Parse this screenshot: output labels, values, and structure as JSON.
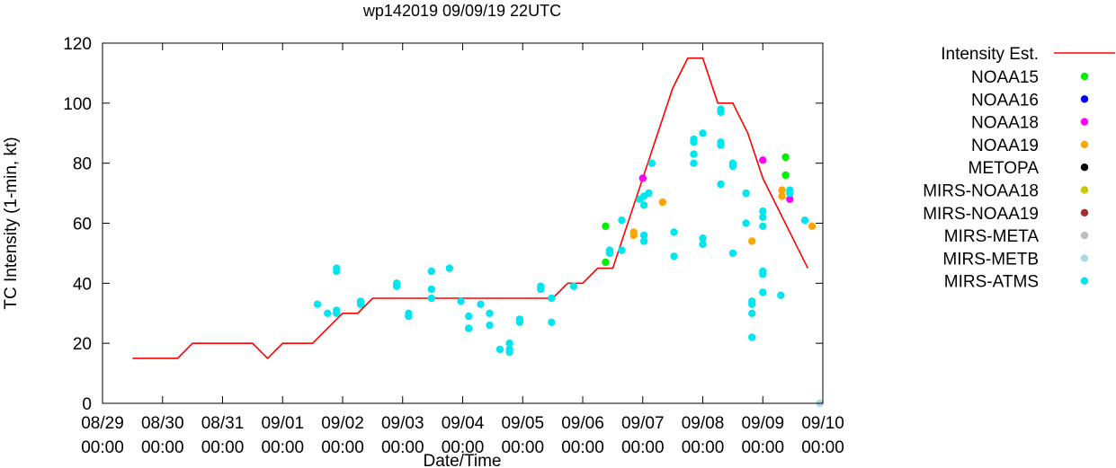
{
  "chart_data": {
    "type": "scatter",
    "title": "wp142019 09/09/19 22UTC",
    "xlabel": "Date/Time",
    "ylabel": "TC Intensity (1-min, kt)",
    "ylim": [
      0,
      120
    ],
    "yticks": [
      0,
      20,
      40,
      60,
      80,
      100,
      120
    ],
    "xlim": [
      0,
      12
    ],
    "xtick_dates": [
      "08/29",
      "08/30",
      "08/31",
      "09/01",
      "09/02",
      "09/03",
      "09/04",
      "09/05",
      "09/06",
      "09/07",
      "09/08",
      "09/09",
      "09/10"
    ],
    "xtick_times": [
      "00:00",
      "00:00",
      "00:00",
      "00:00",
      "00:00",
      "00:00",
      "00:00",
      "00:00",
      "00:00",
      "00:00",
      "00:00",
      "00:00",
      "00:00"
    ],
    "x_units": "days since 08/29 00:00",
    "intensity": {
      "name": "Intensity Est.",
      "color": "#ff0000",
      "x": [
        0.5,
        1.25,
        1.5,
        2.25,
        2.5,
        2.75,
        3.0,
        3.5,
        4.0,
        4.25,
        4.5,
        5.0,
        5.5,
        6.0,
        6.5,
        7.0,
        7.5,
        7.75,
        8.0,
        8.25,
        8.5,
        8.75,
        9.0,
        9.5,
        9.75,
        10.0,
        10.25,
        10.5,
        10.75,
        11.0,
        11.5,
        11.75
      ],
      "y": [
        15,
        15,
        20,
        20,
        20,
        15,
        20,
        20,
        30,
        30,
        35,
        35,
        35,
        35,
        35,
        35,
        35,
        40,
        40,
        45,
        45,
        60,
        75,
        105,
        115,
        115,
        100,
        100,
        90,
        75,
        55,
        45
      ]
    },
    "series": [
      {
        "name": "NOAA15",
        "color": "#00ee00",
        "points": [
          [
            8.38,
            59
          ],
          [
            8.38,
            47
          ],
          [
            11.38,
            82
          ],
          [
            11.38,
            76
          ]
        ]
      },
      {
        "name": "NOAA16",
        "color": "#0000ff",
        "points": []
      },
      {
        "name": "NOAA18",
        "color": "#ff00ff",
        "points": [
          [
            9.0,
            75
          ],
          [
            11.0,
            81
          ],
          [
            11.45,
            68
          ]
        ]
      },
      {
        "name": "NOAA19",
        "color": "#ffa500",
        "points": [
          [
            8.85,
            57
          ],
          [
            8.85,
            56
          ],
          [
            9.33,
            67
          ],
          [
            10.82,
            54
          ],
          [
            11.32,
            71
          ],
          [
            11.32,
            69
          ],
          [
            11.82,
            59
          ]
        ]
      },
      {
        "name": "METOPA",
        "color": "#000000",
        "points": []
      },
      {
        "name": "MIRS-NOAA18",
        "color": "#c8c800",
        "points": []
      },
      {
        "name": "MIRS-NOAA19",
        "color": "#a52a2a",
        "points": []
      },
      {
        "name": "MIRS-META",
        "color": "#bebebe",
        "points": []
      },
      {
        "name": "MIRS-METB",
        "color": "#add8e6",
        "points": [
          [
            11.95,
            0
          ]
        ]
      },
      {
        "name": "MIRS-ATMS",
        "color": "#00e5ee",
        "points": [
          [
            3.58,
            33
          ],
          [
            3.75,
            30
          ],
          [
            3.9,
            45
          ],
          [
            3.9,
            44
          ],
          [
            3.9,
            31
          ],
          [
            3.9,
            30
          ],
          [
            4.3,
            34
          ],
          [
            4.3,
            33
          ],
          [
            4.9,
            40
          ],
          [
            4.9,
            39
          ],
          [
            5.1,
            30
          ],
          [
            5.1,
            29
          ],
          [
            5.48,
            44
          ],
          [
            5.48,
            38
          ],
          [
            5.48,
            35
          ],
          [
            5.78,
            45
          ],
          [
            5.97,
            34
          ],
          [
            6.1,
            29
          ],
          [
            6.1,
            25
          ],
          [
            6.3,
            33
          ],
          [
            6.45,
            30
          ],
          [
            6.45,
            26
          ],
          [
            6.62,
            18
          ],
          [
            6.78,
            20
          ],
          [
            6.78,
            18
          ],
          [
            6.78,
            17
          ],
          [
            6.95,
            28
          ],
          [
            6.95,
            27
          ],
          [
            7.3,
            39
          ],
          [
            7.3,
            38
          ],
          [
            7.48,
            35
          ],
          [
            7.48,
            27
          ],
          [
            7.85,
            39
          ],
          [
            8.45,
            51
          ],
          [
            8.45,
            50
          ],
          [
            8.65,
            61
          ],
          [
            8.65,
            51
          ],
          [
            8.95,
            68
          ],
          [
            9.1,
            70
          ],
          [
            9.02,
            69
          ],
          [
            9.02,
            66
          ],
          [
            9.02,
            56
          ],
          [
            9.02,
            54
          ],
          [
            9.15,
            80
          ],
          [
            9.52,
            57
          ],
          [
            9.52,
            49
          ],
          [
            9.85,
            88
          ],
          [
            9.85,
            87
          ],
          [
            9.85,
            83
          ],
          [
            9.85,
            80
          ],
          [
            10.0,
            90
          ],
          [
            10.0,
            55
          ],
          [
            10.0,
            53
          ],
          [
            10.3,
            98
          ],
          [
            10.3,
            97
          ],
          [
            10.3,
            87
          ],
          [
            10.3,
            86
          ],
          [
            10.3,
            73
          ],
          [
            10.5,
            80
          ],
          [
            10.5,
            79
          ],
          [
            10.5,
            50
          ],
          [
            10.72,
            70
          ],
          [
            10.72,
            60
          ],
          [
            10.82,
            34
          ],
          [
            10.82,
            33
          ],
          [
            10.82,
            30
          ],
          [
            10.82,
            22
          ],
          [
            11.0,
            64
          ],
          [
            11.0,
            62
          ],
          [
            11.0,
            59
          ],
          [
            11.0,
            44
          ],
          [
            11.0,
            43
          ],
          [
            11.0,
            37
          ],
          [
            11.3,
            36
          ],
          [
            11.45,
            71
          ],
          [
            11.45,
            70
          ],
          [
            11.7,
            61
          ]
        ]
      }
    ]
  }
}
